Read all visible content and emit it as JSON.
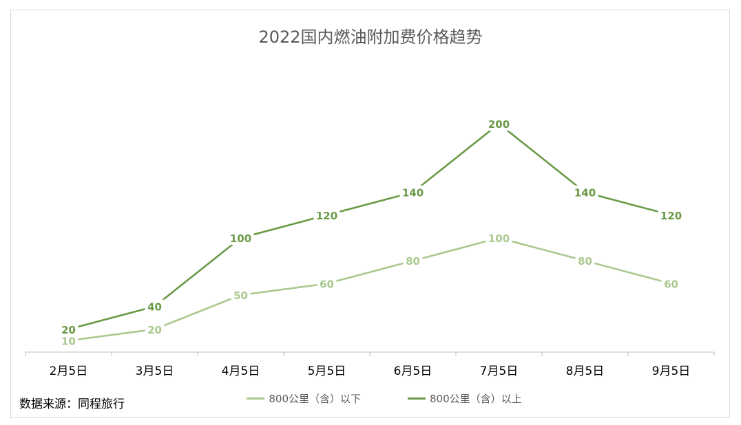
{
  "chart_data": {
    "type": "line",
    "title": "2022国内燃油附加费价格趋势",
    "categories": [
      "2月5日",
      "3月5日",
      "4月5日",
      "5月5日",
      "6月5日",
      "7月5日",
      "8月5日",
      "9月5日"
    ],
    "series": [
      {
        "name": "800公里（含）以下",
        "values": [
          10,
          20,
          50,
          60,
          80,
          100,
          80,
          60
        ],
        "color": "#a9c98f"
      },
      {
        "name": "800公里（含）以上",
        "values": [
          20,
          40,
          100,
          120,
          140,
          200,
          140,
          120
        ],
        "color": "#6a9a46"
      }
    ],
    "ylim": [
      0,
      200
    ],
    "grid": false,
    "legend_position": "bottom",
    "source_note": "数据来源：同程旅行"
  }
}
